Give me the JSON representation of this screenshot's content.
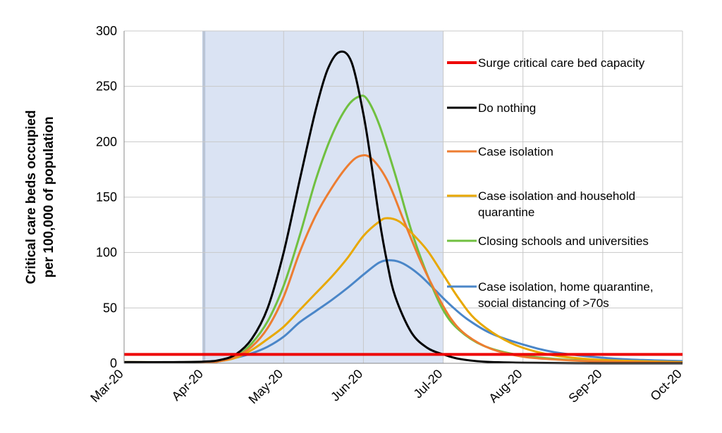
{
  "chart_data": {
    "type": "line",
    "ylabel_lines": [
      "Critical care beds occupied",
      "per 100,000 of population"
    ],
    "xlabel": "",
    "ylim": [
      0,
      300
    ],
    "y_ticks": [
      0,
      50,
      100,
      150,
      200,
      250,
      300
    ],
    "x_ticks": [
      "Mar-20",
      "Apr-20",
      "May-20",
      "Jun-20",
      "Jul-20",
      "Aug-20",
      "Sep-20",
      "Oct-20"
    ],
    "grid": true,
    "legend_position": "right",
    "shaded_period": [
      "Apr-20",
      "Jul-20"
    ],
    "capacity_line": {
      "name": "Surge critical care bed capacity",
      "value": 8,
      "color": "#ee0000"
    },
    "series": [
      {
        "name": "Do nothing",
        "color": "#000000",
        "points": [
          [
            0,
            1
          ],
          [
            0.5,
            1
          ],
          [
            1,
            1.5
          ],
          [
            1.2,
            3
          ],
          [
            1.4,
            8
          ],
          [
            1.6,
            22
          ],
          [
            1.8,
            50
          ],
          [
            2.0,
            100
          ],
          [
            2.2,
            165
          ],
          [
            2.4,
            228
          ],
          [
            2.55,
            265
          ],
          [
            2.7,
            281
          ],
          [
            2.85,
            272
          ],
          [
            3.0,
            225
          ],
          [
            3.1,
            180
          ],
          [
            3.2,
            130
          ],
          [
            3.3,
            90
          ],
          [
            3.4,
            60
          ],
          [
            3.6,
            28
          ],
          [
            3.8,
            14
          ],
          [
            4.0,
            8
          ],
          [
            4.2,
            4
          ],
          [
            4.5,
            1.5
          ],
          [
            5,
            0.5
          ],
          [
            6,
            0
          ],
          [
            7,
            0
          ]
        ]
      },
      {
        "name": "Case isolation",
        "color": "#ed7d31",
        "points": [
          [
            0,
            1
          ],
          [
            1,
            1
          ],
          [
            1.2,
            2
          ],
          [
            1.4,
            6
          ],
          [
            1.6,
            15
          ],
          [
            1.8,
            32
          ],
          [
            2.0,
            60
          ],
          [
            2.2,
            100
          ],
          [
            2.4,
            133
          ],
          [
            2.6,
            158
          ],
          [
            2.8,
            178
          ],
          [
            2.95,
            187
          ],
          [
            3.1,
            185
          ],
          [
            3.3,
            165
          ],
          [
            3.5,
            130
          ],
          [
            3.7,
            95
          ],
          [
            3.9,
            65
          ],
          [
            4.1,
            40
          ],
          [
            4.3,
            25
          ],
          [
            4.6,
            13
          ],
          [
            5.0,
            6
          ],
          [
            5.5,
            3
          ],
          [
            6,
            1.5
          ],
          [
            7,
            0.5
          ]
        ]
      },
      {
        "name": "Case isolation and household quarantine",
        "color": "#e8a800",
        "points": [
          [
            0,
            1
          ],
          [
            1,
            1
          ],
          [
            1.2,
            2
          ],
          [
            1.4,
            5
          ],
          [
            1.6,
            12
          ],
          [
            1.8,
            22
          ],
          [
            2.0,
            33
          ],
          [
            2.2,
            48
          ],
          [
            2.4,
            63
          ],
          [
            2.6,
            78
          ],
          [
            2.8,
            95
          ],
          [
            3.0,
            115
          ],
          [
            3.2,
            128
          ],
          [
            3.3,
            131
          ],
          [
            3.45,
            128
          ],
          [
            3.6,
            118
          ],
          [
            3.8,
            102
          ],
          [
            4.0,
            80
          ],
          [
            4.2,
            58
          ],
          [
            4.4,
            40
          ],
          [
            4.7,
            24
          ],
          [
            5.0,
            14
          ],
          [
            5.4,
            7
          ],
          [
            6,
            3
          ],
          [
            7,
            1
          ]
        ]
      },
      {
        "name": "Closing schools and universities",
        "color": "#70c040",
        "points": [
          [
            0,
            1
          ],
          [
            1,
            1
          ],
          [
            1.2,
            2
          ],
          [
            1.4,
            6
          ],
          [
            1.6,
            18
          ],
          [
            1.8,
            38
          ],
          [
            2.0,
            70
          ],
          [
            2.2,
            115
          ],
          [
            2.4,
            165
          ],
          [
            2.6,
            205
          ],
          [
            2.8,
            232
          ],
          [
            2.95,
            241
          ],
          [
            3.05,
            238
          ],
          [
            3.2,
            215
          ],
          [
            3.4,
            170
          ],
          [
            3.6,
            120
          ],
          [
            3.8,
            80
          ],
          [
            4.0,
            48
          ],
          [
            4.2,
            30
          ],
          [
            4.5,
            16
          ],
          [
            4.9,
            8
          ],
          [
            5.4,
            4
          ],
          [
            6,
            2
          ],
          [
            7,
            0.5
          ]
        ]
      },
      {
        "name": "Case isolation, home quarantine, social distancing of >70s",
        "color": "#4a86c8",
        "points": [
          [
            0,
            1
          ],
          [
            1,
            1
          ],
          [
            1.2,
            2
          ],
          [
            1.4,
            5
          ],
          [
            1.6,
            9
          ],
          [
            1.8,
            15
          ],
          [
            2.0,
            24
          ],
          [
            2.2,
            37
          ],
          [
            2.4,
            47
          ],
          [
            2.6,
            57
          ],
          [
            2.8,
            68
          ],
          [
            3.0,
            80
          ],
          [
            3.2,
            91
          ],
          [
            3.35,
            93
          ],
          [
            3.5,
            90
          ],
          [
            3.7,
            80
          ],
          [
            3.9,
            66
          ],
          [
            4.1,
            52
          ],
          [
            4.3,
            40
          ],
          [
            4.6,
            27
          ],
          [
            5.0,
            17
          ],
          [
            5.4,
            10
          ],
          [
            6.0,
            5
          ],
          [
            6.5,
            3
          ],
          [
            7,
            2
          ]
        ]
      }
    ]
  }
}
